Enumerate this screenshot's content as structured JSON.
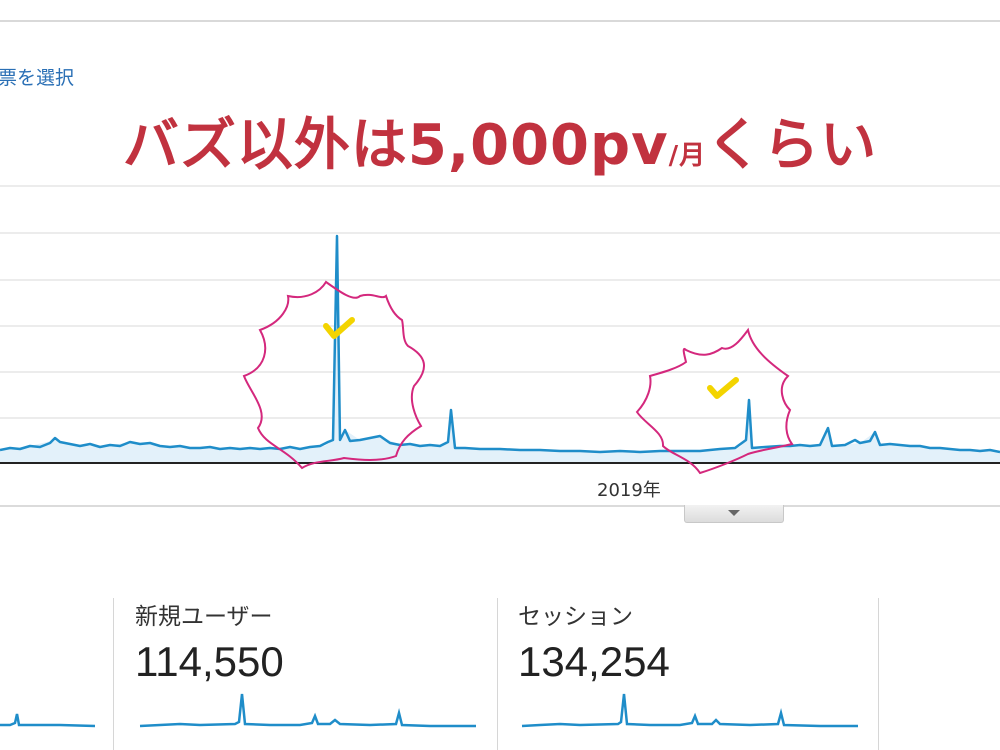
{
  "metric_selector": {
    "label": "票を選択"
  },
  "headline": {
    "main": "バズ以外は5,000pv",
    "unit": "/月",
    "tail": "くらい"
  },
  "timeline": {
    "year_label": "2019年"
  },
  "colors": {
    "line": "#1f8dc9",
    "annotation": "#d4287d",
    "check": "#f3d400",
    "headline": "#c1323f"
  },
  "cards": [
    {
      "label": "新規ユーザー",
      "value": "114,550"
    },
    {
      "label": "セッション",
      "value": "134,254"
    }
  ],
  "icons": {
    "collapse": "chevron-down-icon",
    "check": "check-icon"
  }
}
